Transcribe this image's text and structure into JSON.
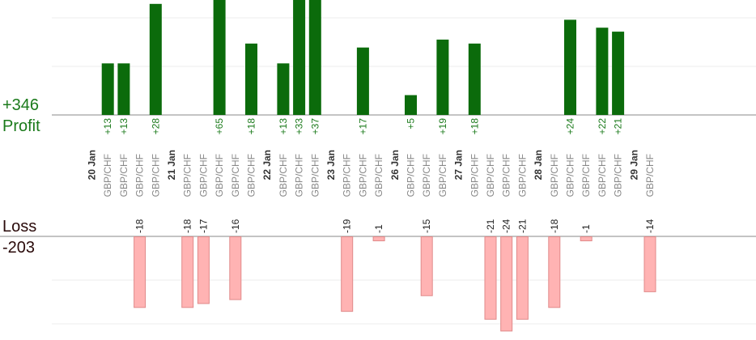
{
  "summary": {
    "profit_total": "+346",
    "profit_label": "Profit",
    "loss_label": "Loss",
    "loss_total": "-203"
  },
  "chart_data": {
    "type": "bar",
    "title": "",
    "colors": {
      "profit": "#0b6b0b",
      "loss": "#ffb3b3",
      "loss_border": "#e08a8a",
      "profit_label": "#1a7a1a",
      "date_label": "#333333",
      "pair_label": "#888888"
    },
    "categories": [
      {
        "date": "20 Jan"
      },
      {
        "pair": "GBP/CHF",
        "value": 13
      },
      {
        "pair": "GBP/CHF",
        "value": 13
      },
      {
        "pair": "GBP/CHF",
        "value": -18
      },
      {
        "pair": "GBP/CHF",
        "value": 28
      },
      {
        "date": "21 Jan"
      },
      {
        "pair": "GBP/CHF",
        "value": -18
      },
      {
        "pair": "GBP/CHF",
        "value": -17
      },
      {
        "pair": "GBP/CHF",
        "value": 65
      },
      {
        "pair": "GBP/CHF",
        "value": -16
      },
      {
        "pair": "GBP/CHF",
        "value": 18
      },
      {
        "date": "22 Jan"
      },
      {
        "pair": "GBP/CHF",
        "value": 13
      },
      {
        "pair": "GBP/CHF",
        "value": 33
      },
      {
        "pair": "GBP/CHF",
        "value": 37
      },
      {
        "date": "23 Jan"
      },
      {
        "pair": "GBP/CHF",
        "value": -19
      },
      {
        "pair": "GBP/CHF",
        "value": 17
      },
      {
        "pair": "GBP/CHF",
        "value": -1
      },
      {
        "date": "26 Jan"
      },
      {
        "pair": "GBP/CHF",
        "value": 5
      },
      {
        "pair": "GBP/CHF",
        "value": -15
      },
      {
        "pair": "GBP/CHF",
        "value": 19
      },
      {
        "date": "27 Jan"
      },
      {
        "pair": "GBP/CHF",
        "value": 18
      },
      {
        "pair": "GBP/CHF",
        "value": -21
      },
      {
        "pair": "GBP/CHF",
        "value": -24
      },
      {
        "pair": "GBP/CHF",
        "value": -21
      },
      {
        "date": "28 Jan"
      },
      {
        "pair": "GBP/CHF",
        "value": -18
      },
      {
        "pair": "GBP/CHF",
        "value": 24
      },
      {
        "pair": "GBP/CHF",
        "value": -1
      },
      {
        "pair": "GBP/CHF",
        "value": 22
      },
      {
        "pair": "GBP/CHF",
        "value": 21
      },
      {
        "date": "29 Jan"
      },
      {
        "pair": "GBP/CHF",
        "value": -14
      }
    ],
    "profit_axis_max": 24,
    "loss_axis_max": 24,
    "grid": true,
    "clipped_above_profit_top": true
  }
}
